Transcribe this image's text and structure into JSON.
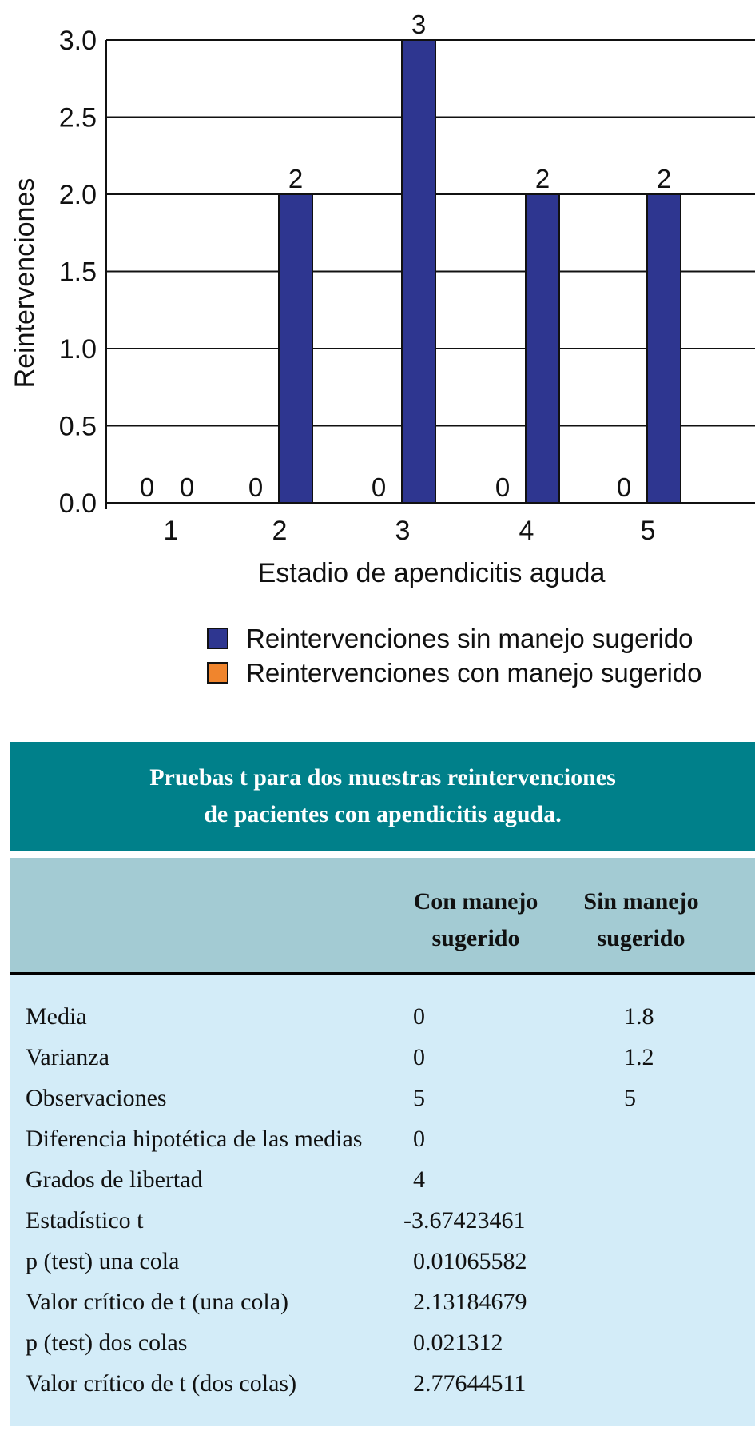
{
  "chart_data": {
    "type": "bar",
    "title": "",
    "xlabel": "Estadio de apendicitis aguda",
    "ylabel": "Reintervenciones",
    "categories": [
      "1",
      "2",
      "3",
      "4",
      "5"
    ],
    "ylim": [
      0,
      3
    ],
    "yticks": [
      "0.0",
      "0.5",
      "1.0",
      "1.5",
      "2.0",
      "2.5",
      "3.0"
    ],
    "grid": true,
    "legend_position": "bottom-right",
    "series": [
      {
        "name": "Reintervenciones con manejo sugerido",
        "color": "#f0852d",
        "values": [
          0,
          0,
          0,
          0,
          0
        ]
      },
      {
        "name": "Reintervenciones sin manejo sugerido",
        "color": "#2e3690",
        "values": [
          0,
          2,
          3,
          2,
          2
        ]
      }
    ]
  },
  "table": {
    "title_line1": "Pruebas t para dos muestras reintervenciones",
    "title_line2": "de pacientes con apendicitis aguda.",
    "col1_line1": "Con manejo",
    "col1_line2": "sugerido",
    "col2_line1": "Sin manejo",
    "col2_line2": "sugerido",
    "rows": [
      {
        "label": "Media",
        "c1": "0",
        "c2": "1.8"
      },
      {
        "label": "Varianza",
        "c1": "0",
        "c2": "1.2"
      },
      {
        "label": "Observaciones",
        "c1": "5",
        "c2": "5"
      },
      {
        "label": "Diferencia hipotética de las medias",
        "c1": "0",
        "c2": ""
      },
      {
        "label": "Grados de libertad",
        "c1": "4",
        "c2": ""
      },
      {
        "label": "Estadístico t",
        "c1": "-3.67423461",
        "c2": ""
      },
      {
        "label": "p (test) una cola",
        "c1": "0.01065582",
        "c2": ""
      },
      {
        "label": "Valor crítico de t (una cola)",
        "c1": "2.13184679",
        "c2": ""
      },
      {
        "label": "p (test) dos colas",
        "c1": "0.021312",
        "c2": ""
      },
      {
        "label": "Valor crítico de t (dos colas)",
        "c1": "2.77644511",
        "c2": ""
      }
    ]
  }
}
